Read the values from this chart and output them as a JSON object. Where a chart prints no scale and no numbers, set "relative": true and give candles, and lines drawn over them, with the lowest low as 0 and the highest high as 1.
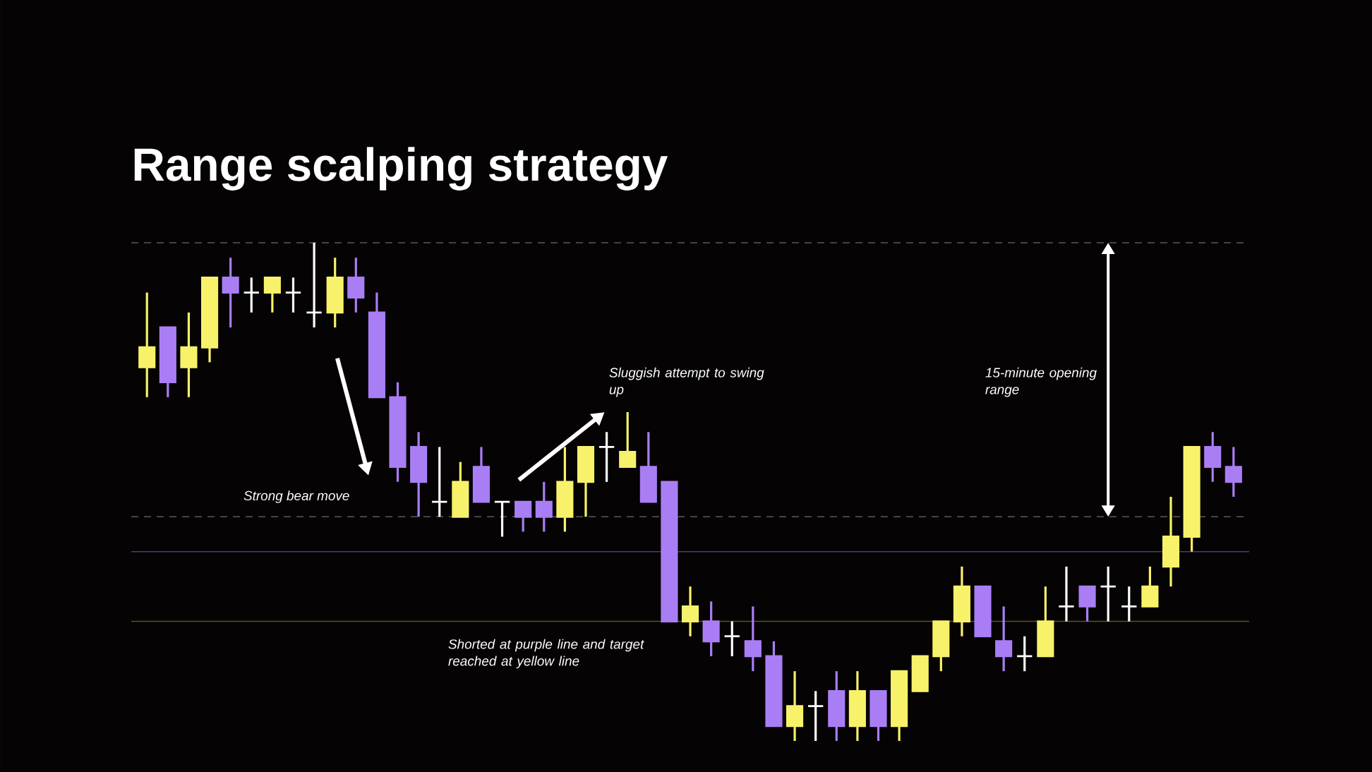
{
  "chart_data": {
    "type": "candlestick",
    "title": "Range scalping strategy",
    "relative": true,
    "categories": [
      null,
      null,
      null,
      null,
      null,
      null,
      null,
      null,
      null,
      null,
      null,
      null,
      null,
      null,
      null,
      null,
      null,
      null,
      null,
      null,
      null,
      null,
      null,
      null,
      null,
      null,
      null,
      null,
      null,
      null,
      null,
      null,
      null,
      null,
      null,
      null,
      null,
      null,
      null,
      null,
      null,
      null,
      null,
      null,
      null,
      null,
      null,
      null,
      null,
      null,
      null,
      null,
      null
    ],
    "ohlc": [
      [
        0.75,
        0.9,
        0.69,
        0.79
      ],
      [
        0.83,
        0.83,
        0.69,
        0.72
      ],
      [
        0.75,
        0.86,
        0.69,
        0.79
      ],
      [
        0.79,
        0.93,
        0.76,
        0.93
      ],
      [
        0.93,
        0.97,
        0.83,
        0.9
      ],
      [
        0.9,
        0.93,
        0.86,
        0.9
      ],
      [
        0.9,
        0.93,
        0.86,
        0.93
      ],
      [
        0.9,
        0.93,
        0.86,
        0.9
      ],
      [
        0.86,
        1.0,
        0.83,
        0.86
      ],
      [
        0.86,
        0.97,
        0.83,
        0.93
      ],
      [
        0.93,
        0.97,
        0.86,
        0.89
      ],
      [
        0.86,
        0.9,
        0.69,
        0.69
      ],
      [
        0.69,
        0.72,
        0.52,
        0.55
      ],
      [
        0.59,
        0.62,
        0.45,
        0.52
      ],
      [
        0.48,
        0.59,
        0.45,
        0.48
      ],
      [
        0.45,
        0.56,
        0.45,
        0.52
      ],
      [
        0.55,
        0.59,
        0.48,
        0.48
      ],
      [
        0.48,
        0.48,
        0.41,
        0.48
      ],
      [
        0.48,
        0.48,
        0.42,
        0.45
      ],
      [
        0.48,
        0.52,
        0.42,
        0.45
      ],
      [
        0.45,
        0.59,
        0.42,
        0.52
      ],
      [
        0.52,
        0.59,
        0.45,
        0.59
      ],
      [
        0.59,
        0.62,
        0.52,
        0.59
      ],
      [
        0.55,
        0.66,
        0.55,
        0.58
      ],
      [
        0.55,
        0.62,
        0.48,
        0.48
      ],
      [
        0.52,
        0.52,
        0.24,
        0.24
      ],
      [
        0.24,
        0.31,
        0.21,
        0.27
      ],
      [
        0.24,
        0.28,
        0.17,
        0.2
      ],
      [
        0.21,
        0.24,
        0.17,
        0.21
      ],
      [
        0.2,
        0.27,
        0.14,
        0.17
      ],
      [
        0.17,
        0.2,
        0.03,
        0.03
      ],
      [
        0.03,
        0.14,
        0,
        0.07
      ],
      [
        0.07,
        0.1,
        0,
        0.07
      ],
      [
        0.1,
        0.14,
        0,
        0.03
      ],
      [
        0.03,
        0.14,
        0,
        0.1
      ],
      [
        0.1,
        0.1,
        0,
        0.03
      ],
      [
        0.03,
        0.14,
        0,
        0.14
      ],
      [
        0.1,
        0.17,
        0.1,
        0.17
      ],
      [
        0.17,
        0.24,
        0.14,
        0.24
      ],
      [
        0.24,
        0.35,
        0.21,
        0.31
      ],
      [
        0.31,
        0.31,
        0.21,
        0.21
      ],
      [
        0.2,
        0.27,
        0.14,
        0.17
      ],
      [
        0.17,
        0.21,
        0.14,
        0.17
      ],
      [
        0.17,
        0.31,
        0.17,
        0.24
      ],
      [
        0.27,
        0.35,
        0.24,
        0.27
      ],
      [
        0.31,
        0.31,
        0.24,
        0.27
      ],
      [
        0.31,
        0.35,
        0.24,
        0.31
      ],
      [
        0.27,
        0.31,
        0.24,
        0.27
      ],
      [
        0.27,
        0.35,
        0.27,
        0.31
      ],
      [
        0.35,
        0.49,
        0.31,
        0.41
      ],
      [
        0.41,
        0.59,
        0.38,
        0.59
      ],
      [
        0.59,
        0.62,
        0.52,
        0.55
      ],
      [
        0.55,
        0.59,
        0.49,
        0.52
      ]
    ],
    "colors": [
      "#f7f26a",
      "#a97ef5",
      "#f7f26a",
      "#f7f26a",
      "#a97ef5",
      "#ffffff",
      "#f7f26a",
      "#ffffff",
      "#ffffff",
      "#f7f26a",
      "#a97ef5",
      "#a97ef5",
      "#a97ef5",
      "#a97ef5",
      "#ffffff",
      "#f7f26a",
      "#a97ef5",
      "#ffffff",
      "#a97ef5",
      "#a97ef5",
      "#f7f26a",
      "#f7f26a",
      "#ffffff",
      "#f7f26a",
      "#a97ef5",
      "#a97ef5",
      "#f7f26a",
      "#a97ef5",
      "#ffffff",
      "#a97ef5",
      "#a97ef5",
      "#f7f26a",
      "#ffffff",
      "#a97ef5",
      "#f7f26a",
      "#a97ef5",
      "#f7f26a",
      "#f7f26a",
      "#f7f26a",
      "#f7f26a",
      "#a97ef5",
      "#a97ef5",
      "#ffffff",
      "#f7f26a",
      "#ffffff",
      "#a97ef5",
      "#ffffff",
      "#ffffff",
      "#f7f26a",
      "#f7f26a",
      "#f7f26a",
      "#a97ef5",
      "#a97ef5"
    ],
    "ref_lines": [
      {
        "axis": "y",
        "value": 1.0,
        "color": "#5a5a5a",
        "line_style": "dashed"
      },
      {
        "axis": "y",
        "value": 0.45,
        "color": "#5a5a5a",
        "line_style": "dashed"
      },
      {
        "axis": "y",
        "value": 0.38,
        "color": "#4a3a70",
        "line_style": "solid"
      },
      {
        "axis": "y",
        "value": 0.24,
        "color": "#55552a",
        "line_style": "solid"
      }
    ],
    "annotations": [
      "Strong bear move",
      "Sluggish attempt to swing up",
      "15-minute opening range",
      "Shorted at purple line and target reached at yellow line"
    ]
  }
}
